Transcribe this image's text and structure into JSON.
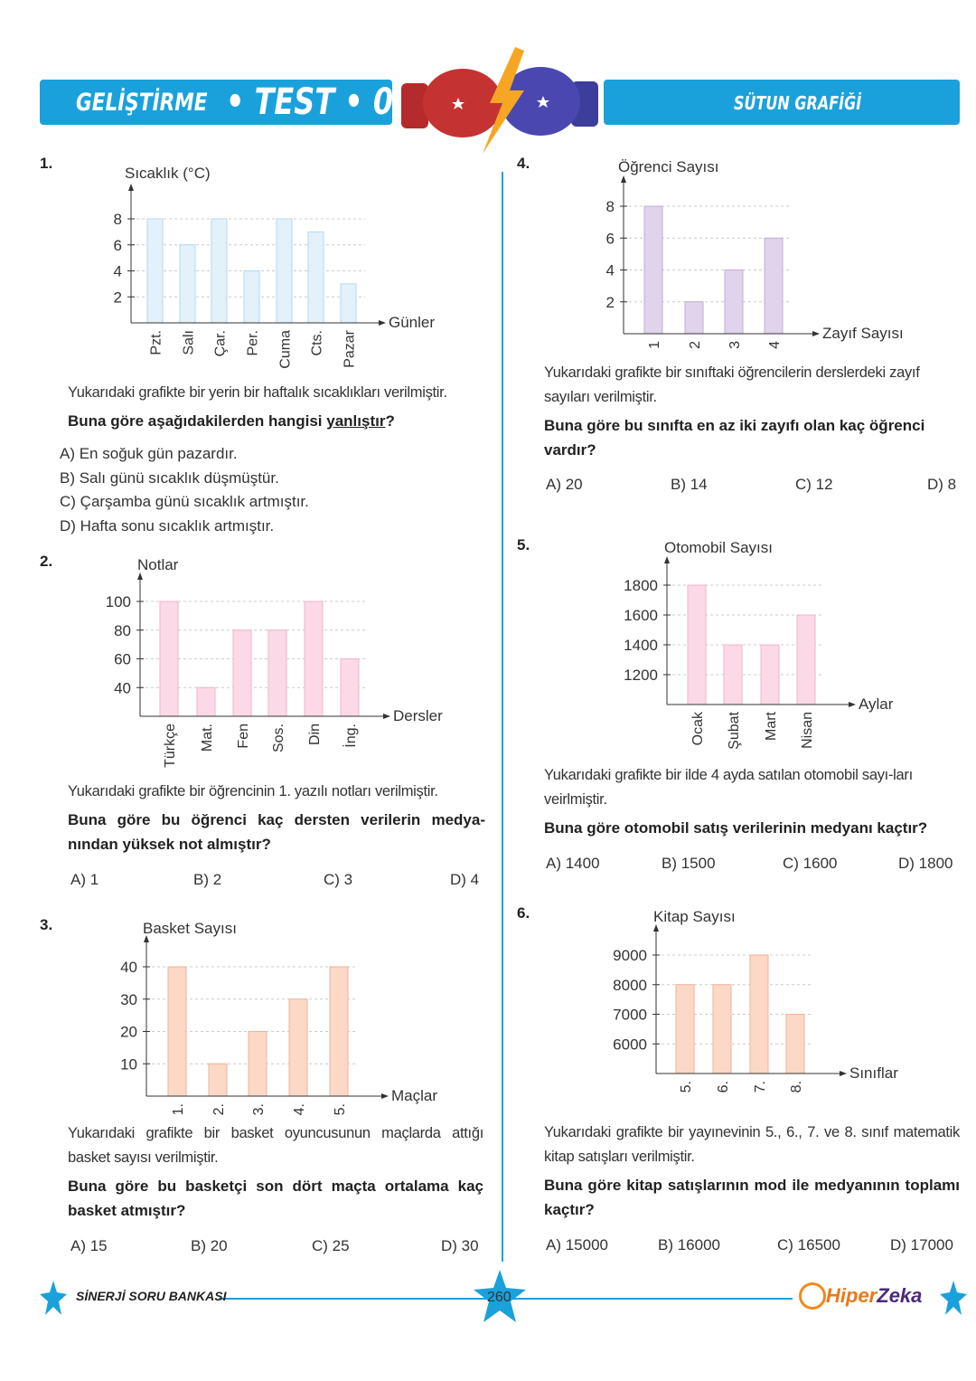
{
  "header": {
    "section": "GELİŞTİRME",
    "test": "• TEST • 05",
    "topic": "SÜTUN GRAFİĞİ"
  },
  "footer": {
    "series": "SİNERJİ SORU BANKASI",
    "page": "260",
    "brand_a": "Hiper",
    "brand_b": "Zeka"
  },
  "colors": {
    "accent": "#1aa1dc"
  },
  "questions": [
    {
      "number": "1.",
      "text": "Yukarıdaki grafikte bir yerin bir haftalık sıcaklıkları verilmiştir.",
      "question_pre": "Buna göre aşağıdakilerden hangisi ",
      "question_u": "yanlıştır",
      "question_post": "?",
      "options": [
        "A)  En soğuk gün pazardır.",
        "B)  Salı günü sıcaklık düşmüştür.",
        "C)  Çarşamba günü sıcaklık artmıştır.",
        "D)  Hafta sonu sıcaklık artmıştır."
      ]
    },
    {
      "number": "2.",
      "text": "Yukarıdaki grafikte bir öğrencinin 1. yazılı notları verilmiştir.",
      "question": "Buna göre bu öğrenci kaç dersten verilerin medya-nından yüksek not almıştır?",
      "options": [
        "A) 1",
        "B) 2",
        "C) 3",
        "D) 4"
      ]
    },
    {
      "number": "3.",
      "text": "Yukarıdaki grafikte bir basket oyuncusunun maçlarda attığı basket sayısı verilmiştir.",
      "question": "Buna göre bu basketçi son dört maçta ortalama kaç basket atmıştır?",
      "options": [
        "A) 15",
        "B) 20",
        "C) 25",
        "D) 30"
      ]
    },
    {
      "number": "4.",
      "text": "Yukarıdaki grafikte bir sınıftaki öğrencilerin derslerdeki zayıf sayıları verilmiştir.",
      "question": "Buna göre bu sınıfta en az iki zayıfı olan kaç öğrenci vardır?",
      "options": [
        "A) 20",
        "B) 14",
        "C) 12",
        "D) 8"
      ]
    },
    {
      "number": "5.",
      "text": "Yukarıdaki grafikte bir ilde 4 ayda satılan otomobil sayı-ları veirlmiştir.",
      "question": "Buna göre otomobil satış verilerinin medyanı kaçtır?",
      "options": [
        "A) 1400",
        "B) 1500",
        "C) 1600",
        "D) 1800"
      ]
    },
    {
      "number": "6.",
      "text": "Yukarıdaki grafikte bir yayınevinin 5., 6., 7. ve 8. sınıf matematik kitap satışları verilmiştir.",
      "question": "Buna göre kitap satışlarının mod ile medyanının toplamı kaçtır?",
      "options": [
        "A) 15000",
        "B) 16000",
        "C) 16500",
        "D) 17000"
      ]
    }
  ],
  "chart_data": [
    {
      "type": "bar",
      "ylabel": "Sıcaklık (°C)",
      "xlabel": "Günler",
      "categories": [
        "Pzt.",
        "Salı",
        "Çar.",
        "Per.",
        "Cuma",
        "Cts.",
        "Pazar"
      ],
      "values": [
        8,
        6,
        8,
        4,
        8,
        7,
        3
      ],
      "yticks": [
        2,
        4,
        6,
        8
      ],
      "ylim": [
        0,
        8
      ],
      "grid": true,
      "color": "#e3f1fb"
    },
    {
      "type": "bar",
      "ylabel": "Notlar",
      "xlabel": "Dersler",
      "categories": [
        "Türkçe",
        "Mat.",
        "Fen",
        "Sos.",
        "Din",
        "İng."
      ],
      "values": [
        100,
        40,
        80,
        80,
        100,
        60
      ],
      "yticks": [
        40,
        60,
        80,
        100
      ],
      "ylim": [
        20,
        100
      ],
      "grid": true,
      "color": "#fcd9e6"
    },
    {
      "type": "bar",
      "ylabel": "Basket Sayısı",
      "xlabel": "Maçlar",
      "categories": [
        "1.",
        "2.",
        "3.",
        "4.",
        "5."
      ],
      "values": [
        40,
        10,
        20,
        30,
        40
      ],
      "yticks": [
        10,
        20,
        30,
        40
      ],
      "ylim": [
        0,
        40
      ],
      "grid": true,
      "color": "#fcd8c6"
    },
    {
      "type": "bar",
      "ylabel": "Öğrenci Sayısı",
      "xlabel": "Zayıf Sayısı",
      "categories": [
        "1",
        "2",
        "3",
        "4"
      ],
      "values": [
        8,
        2,
        4,
        6
      ],
      "yticks": [
        2,
        4,
        6,
        8
      ],
      "ylim": [
        0,
        8
      ],
      "grid": true,
      "color": "#e0d3ec"
    },
    {
      "type": "bar",
      "ylabel": "Otomobil Sayısı",
      "xlabel": "Aylar",
      "categories": [
        "Ocak",
        "Şubat",
        "Mart",
        "Nisan"
      ],
      "values": [
        1800,
        1400,
        1400,
        1600
      ],
      "yticks": [
        1200,
        1400,
        1600,
        1800
      ],
      "ylim": [
        1000,
        1800
      ],
      "grid": true,
      "color": "#fcd9e6"
    },
    {
      "type": "bar",
      "ylabel": "Kitap Sayısı",
      "xlabel": "Sınıflar",
      "categories": [
        "5.",
        "6.",
        "7.",
        "8."
      ],
      "values": [
        8000,
        8000,
        9000,
        7000
      ],
      "yticks": [
        6000,
        7000,
        8000,
        9000
      ],
      "ylim": [
        5000,
        9000
      ],
      "grid": true,
      "color": "#fcd8c6"
    }
  ]
}
